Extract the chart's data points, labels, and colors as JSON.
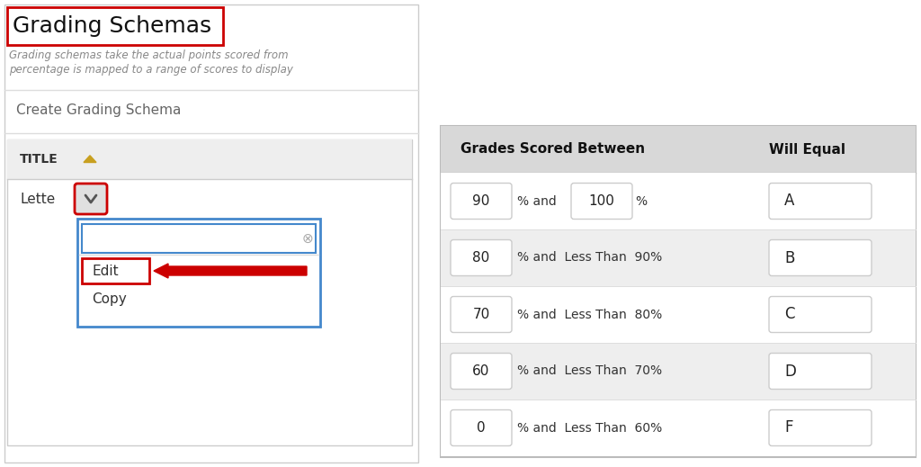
{
  "bg_color": "#ffffff",
  "left_panel": {
    "title": "Grading Schemas",
    "title_box_color": "#cc0000",
    "subtitle_line1": "Grading schemas take the actual points scored from",
    "subtitle_line2": "percentage is mapped to a range of scores to display",
    "subtitle_color": "#888888",
    "create_text": "Create Grading Schema",
    "section_bg": "#eeeeee",
    "title_header": "TITLE",
    "triangle_color": "#c8a020",
    "lette_text": "Lette",
    "dropdown_box_color": "#cc0000",
    "menu_border_color": "#4488cc",
    "edit_box_color": "#cc0000",
    "edit_text": "Edit",
    "copy_text": "Copy",
    "arrow_color": "#cc0000"
  },
  "right_panel": {
    "header_bg": "#d8d8d8",
    "header_text1": "Grades Scored Between",
    "header_text2": "Will Equal",
    "rows": [
      {
        "val1": "90",
        "mid": "% and",
        "val2": "100",
        "pct": "%",
        "grade": "A",
        "alt": false
      },
      {
        "val1": "80",
        "mid": "% and  Less Than  90%",
        "val2": "",
        "pct": "",
        "grade": "B",
        "alt": true
      },
      {
        "val1": "70",
        "mid": "% and  Less Than  80%",
        "val2": "",
        "pct": "",
        "grade": "C",
        "alt": false
      },
      {
        "val1": "60",
        "mid": "% and  Less Than  70%",
        "val2": "",
        "pct": "",
        "grade": "D",
        "alt": true
      },
      {
        "val1": "0",
        "mid": "% and  Less Than  60%",
        "val2": "",
        "pct": "",
        "grade": "F",
        "alt": false
      }
    ]
  }
}
